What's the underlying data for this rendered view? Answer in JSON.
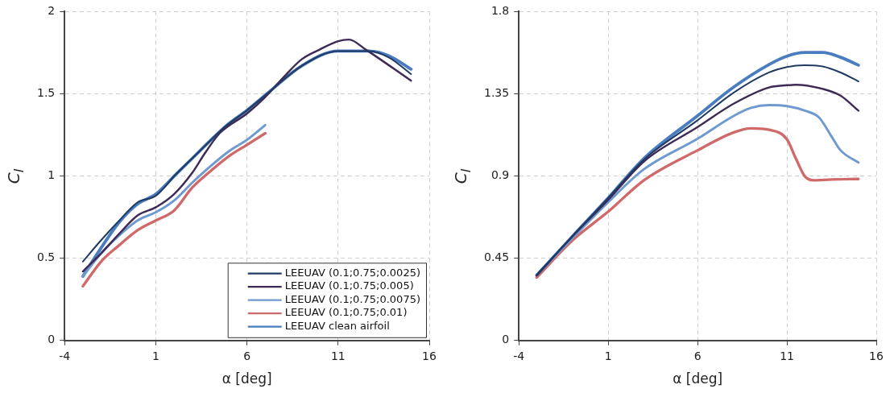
{
  "chart_data": [
    {
      "type": "line",
      "xlabel": "α [deg]",
      "ylabel": "C$_{l}$",
      "xlim": [
        -4,
        16
      ],
      "xticks": [
        -4,
        1,
        6,
        11,
        16
      ],
      "ylim": [
        0,
        2
      ],
      "yticks": [
        0,
        0.5,
        1,
        1.5,
        2
      ],
      "grid": true,
      "legend": "bottom right",
      "series": [
        {
          "name": "LEEUAV (0.1;0.75;0.0025)",
          "color": "#1f3b63",
          "x": [
            -3,
            -2,
            -1,
            0,
            1,
            2.1,
            3.3,
            4.8,
            6,
            7.2,
            9,
            11,
            12.7,
            13.8,
            15
          ],
          "values": [
            0.48,
            0.61,
            0.73,
            0.84,
            0.88,
            1.01,
            1.14,
            1.3,
            1.4,
            1.51,
            1.67,
            1.76,
            1.76,
            1.72,
            1.62
          ]
        },
        {
          "name": "LEEUAV (0.1;0.75;0.005)",
          "color": "#3d2b56",
          "x": [
            -3,
            -2,
            -1,
            0,
            1,
            2,
            3,
            3.7,
            4.5,
            6,
            7,
            8,
            9,
            10,
            11,
            11.6,
            12.5,
            15
          ],
          "values": [
            0.42,
            0.53,
            0.65,
            0.76,
            0.81,
            0.89,
            1.02,
            1.14,
            1.26,
            1.38,
            1.48,
            1.6,
            1.71,
            1.77,
            1.82,
            1.83,
            1.77,
            1.58
          ]
        },
        {
          "name": "LEEUAV (0.1;0.75;0.0075)",
          "color": "#6f9ad0",
          "x": [
            -3,
            -2,
            -1,
            0,
            1,
            2,
            3,
            4,
            5,
            6,
            7
          ],
          "values": [
            0.39,
            0.53,
            0.64,
            0.73,
            0.78,
            0.85,
            0.96,
            1.06,
            1.15,
            1.22,
            1.31
          ]
        },
        {
          "name": "LEEUAV (0.1;0.75;0.01)",
          "color": "#d06a6a",
          "x": [
            -3,
            -2,
            -1,
            0,
            1,
            2,
            3,
            4,
            5,
            6,
            7
          ],
          "values": [
            0.33,
            0.48,
            0.58,
            0.67,
            0.73,
            0.79,
            0.93,
            1.03,
            1.12,
            1.19,
            1.26
          ]
        },
        {
          "name": "LEEUAV clean airfoil",
          "color": "#4a7cc0",
          "x": [
            -3,
            -1.9,
            -1,
            0,
            1,
            2.1,
            3.3,
            4.8,
            6,
            7.2,
            9,
            11,
            12.7,
            13.8,
            15
          ],
          "values": [
            0.39,
            0.58,
            0.72,
            0.83,
            0.89,
            1.01,
            1.14,
            1.3,
            1.4,
            1.51,
            1.67,
            1.76,
            1.76,
            1.73,
            1.65
          ]
        }
      ]
    },
    {
      "type": "line",
      "xlabel": "α [deg]",
      "ylabel": "C$_{l}$",
      "xlim": [
        -4,
        16
      ],
      "xticks": [
        -4,
        1,
        6,
        11,
        16
      ],
      "ylim": [
        0,
        1.8
      ],
      "yticks": [
        0,
        0.45,
        0.9,
        1.35,
        1.8
      ],
      "grid": true,
      "series": [
        {
          "color": "#1f3b63",
          "x": [
            -3,
            -1,
            1,
            3,
            6,
            8,
            10,
            11,
            12,
            13,
            14,
            15
          ],
          "values": [
            0.36,
            0.57,
            0.78,
            0.99,
            1.205,
            1.355,
            1.467,
            1.497,
            1.507,
            1.5,
            1.467,
            1.418
          ]
        },
        {
          "color": "#3d2b56",
          "x": [
            -3,
            -1,
            1,
            3,
            6,
            8,
            10,
            11,
            11.5,
            13,
            14,
            15
          ],
          "values": [
            0.355,
            0.57,
            0.77,
            0.98,
            1.168,
            1.295,
            1.385,
            1.397,
            1.4,
            1.377,
            1.34,
            1.258
          ]
        },
        {
          "color": "#6f9ad0",
          "x": [
            -3,
            -1,
            1,
            3,
            6,
            8,
            9,
            10,
            11,
            12,
            12.8,
            13.5,
            14,
            15
          ],
          "values": [
            0.355,
            0.56,
            0.757,
            0.937,
            1.104,
            1.228,
            1.273,
            1.288,
            1.283,
            1.258,
            1.22,
            1.116,
            1.041,
            0.974
          ]
        },
        {
          "color": "#d06a6a",
          "x": [
            -3,
            -1,
            1,
            3,
            6,
            8,
            9,
            10,
            11,
            11.5,
            12,
            12.5,
            13.5,
            15
          ],
          "values": [
            0.345,
            0.548,
            0.705,
            0.877,
            1.041,
            1.138,
            1.161,
            1.153,
            1.101,
            0.996,
            0.899,
            0.877,
            0.881,
            0.884
          ]
        },
        {
          "color": "#4a7cc0",
          "x": [
            -3,
            -1,
            1,
            3,
            6,
            8,
            10,
            11,
            12,
            13,
            14,
            15
          ],
          "values": [
            0.357,
            0.57,
            0.78,
            0.996,
            1.23,
            1.385,
            1.51,
            1.556,
            1.576,
            1.576,
            1.55,
            1.507
          ]
        }
      ]
    }
  ]
}
